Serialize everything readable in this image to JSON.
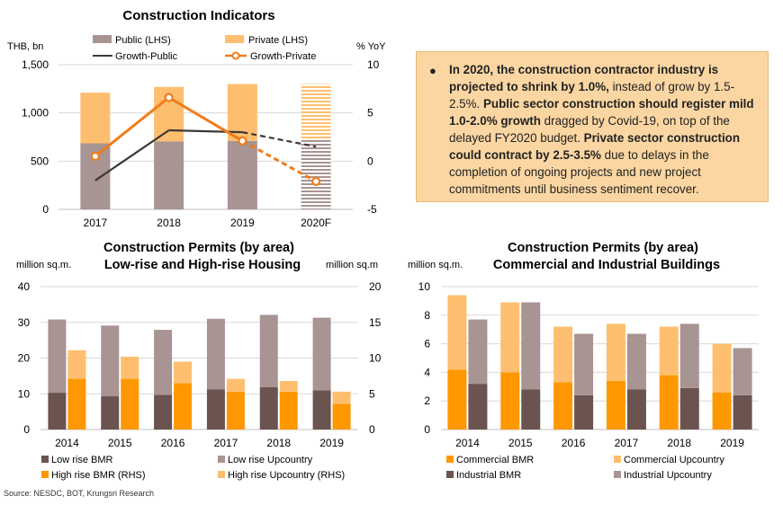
{
  "source": "Source: NESDC, BOT, Krungsri Research",
  "note": {
    "bullet": "●",
    "parts": [
      {
        "bold": true,
        "text": "In 2020, the construction contractor industry is projected to shrink by 1.0%,"
      },
      {
        "bold": false,
        "text": " instead of grow by 1.5-2.5%. "
      },
      {
        "bold": true,
        "text": "Public sector construction should register mild 1.0-2.0% growth"
      },
      {
        "bold": false,
        "text": " dragged by Covid-19, on top of the delayed FY2020 budget. "
      },
      {
        "bold": true,
        "text": "Private sector construction could contract by 2.5-3.5%"
      },
      {
        "bold": false,
        "text": " due to delays in the completion of ongoing projects and new project commitments until business sentiment recover."
      }
    ]
  },
  "colors": {
    "public": "#a89492",
    "private": "#fdbf6f",
    "growth_public": "#3d3735",
    "growth_private": "#f07c1a",
    "low_bmr": "#6b5350",
    "low_upcountry": "#a89492",
    "high_bmr": "#ff9800",
    "high_upcountry": "#fdbf6f",
    "com_bmr": "#ff9800",
    "com_upcountry": "#fdbf6f",
    "ind_bmr": "#6b5350",
    "ind_upcountry": "#a89492"
  },
  "chart_data": [
    {
      "type": "bar",
      "title": "Construction Indicators",
      "ylabel_left": "THB, bn",
      "ylabel_right": "% YoY",
      "categories": [
        "2017",
        "2018",
        "2019",
        "2020F"
      ],
      "ylim_left": [
        0,
        1500
      ],
      "yticks_left": [
        "0",
        "500",
        "1,000",
        "1,500"
      ],
      "ylim_right": [
        -5,
        10
      ],
      "yticks_right": [
        "-5",
        "0",
        "5",
        "10"
      ],
      "forecast_category": "2020F",
      "series": [
        {
          "name": "Public (LHS)",
          "kind": "stacked-bar",
          "axis": "left",
          "values": [
            685,
            705,
            710,
            730
          ]
        },
        {
          "name": "Private (LHS)",
          "kind": "stacked-bar",
          "axis": "left",
          "values": [
            525,
            565,
            590,
            570
          ]
        },
        {
          "name": "Growth-Public",
          "kind": "line",
          "axis": "right",
          "values": [
            -2.0,
            3.2,
            3.0,
            1.5
          ],
          "dashed_from": 2
        },
        {
          "name": "Growth-Private",
          "kind": "line-marker",
          "axis": "right",
          "values": [
            0.5,
            6.6,
            2.1,
            -2.1
          ],
          "dashed_from": 2
        }
      ],
      "legend": "top",
      "legend_order": [
        "Public (LHS)",
        "Private (LHS)",
        "Growth-Public",
        "Growth-Private"
      ]
    },
    {
      "type": "bar",
      "title": "Construction Permits (by area)",
      "subtitle": "Low-rise and High-rise Housing",
      "ylabel_left": "million sq.m.",
      "ylabel_right": "million sq.m",
      "categories": [
        "2014",
        "2015",
        "2016",
        "2017",
        "2018",
        "2019"
      ],
      "ylim_left": [
        0,
        40
      ],
      "yticks_left": [
        "0",
        "10",
        "20",
        "30",
        "40"
      ],
      "ylim_right": [
        0,
        20
      ],
      "yticks_right": [
        "0",
        "5",
        "10",
        "15",
        "20"
      ],
      "stacks": [
        {
          "axis": "left",
          "series": [
            {
              "name": "Low rise BMR",
              "values": [
                10.3,
                9.3,
                9.7,
                11.2,
                11.9,
                11.0
              ]
            },
            {
              "name": "Low rise Upcountry",
              "values": [
                20.5,
                19.8,
                18.2,
                19.8,
                20.2,
                20.3
              ]
            }
          ]
        },
        {
          "axis": "right",
          "series": [
            {
              "name": "High rise BMR (RHS)",
              "values": [
                7.1,
                7.1,
                6.5,
                5.3,
                5.3,
                3.6
              ]
            },
            {
              "name": "High rise Upcountry (RHS)",
              "values": [
                4.0,
                3.1,
                3.0,
                1.8,
                1.5,
                1.7
              ]
            }
          ]
        }
      ],
      "legend": "bottom",
      "legend_order": [
        "Low rise BMR",
        "Low rise Upcountry",
        "High rise BMR (RHS)",
        "High rise Upcountry (RHS)"
      ]
    },
    {
      "type": "bar",
      "title": "Construction Permits (by area)",
      "subtitle": "Commercial and Industrial Buildings",
      "ylabel_left": "million sq.m.",
      "categories": [
        "2014",
        "2015",
        "2016",
        "2017",
        "2018",
        "2019"
      ],
      "ylim_left": [
        0,
        10
      ],
      "yticks_left": [
        "0",
        "2",
        "4",
        "6",
        "8",
        "10"
      ],
      "stacks": [
        {
          "axis": "left",
          "series": [
            {
              "name": "Commercial BMR",
              "values": [
                4.2,
                4.0,
                3.3,
                3.4,
                3.8,
                2.6
              ]
            },
            {
              "name": "Commercial Upcountry",
              "values": [
                5.2,
                4.9,
                3.9,
                4.0,
                3.4,
                3.4
              ]
            }
          ]
        },
        {
          "axis": "left",
          "series": [
            {
              "name": "Industrial BMR",
              "values": [
                3.2,
                2.8,
                2.4,
                2.8,
                2.9,
                2.4
              ]
            },
            {
              "name": "Industrial Upcountry",
              "values": [
                4.5,
                6.1,
                4.3,
                3.9,
                4.5,
                3.3
              ]
            }
          ]
        }
      ],
      "legend": "bottom",
      "legend_order": [
        "Commercial BMR",
        "Commercial Upcountry",
        "Industrial BMR",
        "Industrial Upcountry"
      ]
    }
  ]
}
